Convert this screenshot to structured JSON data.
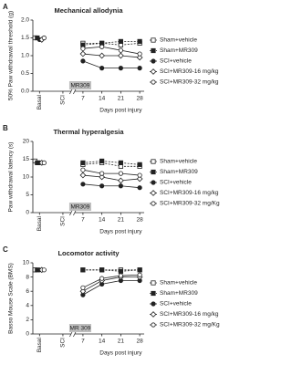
{
  "chart_data": [
    {
      "type": "line",
      "panel_label": "A",
      "title": "Mechanical allodynia",
      "y_label": "50% Paw withdrawal threshold (g)",
      "x_label": "Days post injury",
      "annotation": "MR309",
      "categories": [
        "Basal",
        "SCI",
        "7",
        "14",
        "21",
        "28"
      ],
      "ylim": [
        0,
        2
      ],
      "yticks": [
        {
          "value": 0,
          "label": "0.0"
        },
        0.5,
        {
          "value": 1,
          "label": "1.0"
        },
        1.5,
        {
          "value": 2,
          "label": "2.0"
        }
      ],
      "series": [
        {
          "name": "Sham+vehicle",
          "color": "#222",
          "marker": "square-open",
          "dash": true,
          "values": [
            1.5,
            null,
            1.35,
            1.35,
            1.3,
            1.35
          ]
        },
        {
          "name": "Sham+MR309",
          "color": "#222",
          "marker": "square",
          "dash": true,
          "values": [
            1.5,
            null,
            1.3,
            1.35,
            1.4,
            1.4
          ]
        },
        {
          "name": "SCI+vehicle",
          "color": "#222",
          "marker": "circle",
          "dash": false,
          "values": [
            1.45,
            null,
            0.85,
            0.65,
            0.65,
            0.65
          ]
        },
        {
          "name": "SCI+MR309-16 mg/kg",
          "color": "#222",
          "marker": "diamond-open",
          "dash": false,
          "values": [
            1.45,
            null,
            1.05,
            1.0,
            1.0,
            0.95
          ]
        },
        {
          "name": "SCI+MR309-32 mg/kg",
          "color": "#222",
          "marker": "circle-open",
          "dash": false,
          "values": [
            1.5,
            null,
            1.2,
            1.25,
            1.15,
            1.05
          ]
        }
      ]
    },
    {
      "type": "line",
      "panel_label": "B",
      "title": "Thermal hyperalgesia",
      "y_label": "Paw withdrawal latency (s)",
      "x_label": "Days post injury",
      "annotation": "MR309",
      "categories": [
        "Basal",
        "SCI",
        "7",
        "14",
        "21",
        "28"
      ],
      "ylim": [
        0,
        20
      ],
      "yticks": [
        0,
        5,
        10,
        15,
        20
      ],
      "series": [
        {
          "name": "Sham+vehicle",
          "color": "#222",
          "marker": "square-open",
          "dash": true,
          "values": [
            14.5,
            null,
            13.5,
            14,
            13,
            13
          ]
        },
        {
          "name": "Sham+MR309",
          "color": "#222",
          "marker": "square",
          "dash": true,
          "values": [
            14,
            null,
            14,
            14.5,
            14,
            13.5
          ]
        },
        {
          "name": "SCI+vehicle",
          "color": "#222",
          "marker": "circle",
          "dash": false,
          "values": [
            14,
            null,
            8,
            7.5,
            7.5,
            7
          ]
        },
        {
          "name": "SCI+MR309-16 mg/kg",
          "color": "#222",
          "marker": "diamond-open",
          "dash": false,
          "values": [
            14,
            null,
            10.5,
            10,
            9,
            9.5
          ]
        },
        {
          "name": "SCI+MR309-32 mg/Kg",
          "color": "#222",
          "marker": "circle-open",
          "dash": false,
          "values": [
            14,
            null,
            12,
            11,
            11,
            10.5
          ]
        }
      ]
    },
    {
      "type": "line",
      "panel_label": "C",
      "title": "Locomotor activity",
      "y_label": "Basso Mouse Scale (BMS)",
      "x_label": "Days post injury",
      "annotation": "MR 309",
      "categories": [
        "Basal",
        "SCI",
        "7",
        "14",
        "21",
        "28"
      ],
      "ylim": [
        0,
        10
      ],
      "yticks": [
        0,
        2,
        4,
        6,
        8,
        10
      ],
      "series": [
        {
          "name": "Sham+vehicle",
          "color": "#222",
          "marker": "square-open",
          "dash": true,
          "values": [
            9,
            null,
            9,
            9,
            9,
            9
          ]
        },
        {
          "name": "Sham+MR309",
          "color": "#222",
          "marker": "square",
          "dash": true,
          "values": [
            9,
            null,
            9,
            9,
            8.8,
            9
          ]
        },
        {
          "name": "SCI+vehicle",
          "color": "#222",
          "marker": "circle",
          "dash": false,
          "values": [
            9,
            null,
            5.5,
            7,
            7.5,
            7.5
          ]
        },
        {
          "name": "SCI+MR309-16 mg/kg",
          "color": "#222",
          "marker": "diamond-open",
          "dash": false,
          "values": [
            9,
            null,
            6,
            7.5,
            8,
            8
          ]
        },
        {
          "name": "SCI+MR309-32 mg/Kg",
          "color": "#222",
          "marker": "circle-open",
          "dash": false,
          "values": [
            9,
            null,
            6.5,
            7.8,
            8.2,
            8.3
          ]
        }
      ]
    }
  ]
}
